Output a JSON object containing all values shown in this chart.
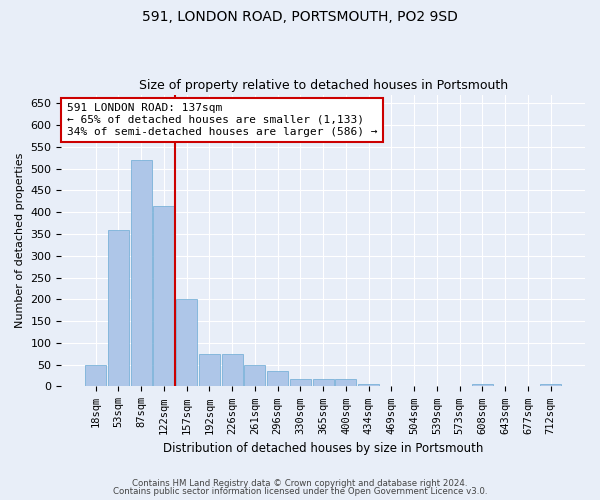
{
  "title": "591, LONDON ROAD, PORTSMOUTH, PO2 9SD",
  "subtitle": "Size of property relative to detached houses in Portsmouth",
  "xlabel": "Distribution of detached houses by size in Portsmouth",
  "ylabel": "Number of detached properties",
  "categories": [
    "18sqm",
    "53sqm",
    "87sqm",
    "122sqm",
    "157sqm",
    "192sqm",
    "226sqm",
    "261sqm",
    "296sqm",
    "330sqm",
    "365sqm",
    "400sqm",
    "434sqm",
    "469sqm",
    "504sqm",
    "539sqm",
    "573sqm",
    "608sqm",
    "643sqm",
    "677sqm",
    "712sqm"
  ],
  "values": [
    50,
    360,
    520,
    415,
    200,
    75,
    75,
    50,
    35,
    18,
    18,
    18,
    5,
    2,
    2,
    2,
    2,
    5,
    2,
    2,
    5
  ],
  "bar_color": "#aec6e8",
  "bar_edge_color": "#6aaad4",
  "background_color": "#e8eef8",
  "grid_color": "#ffffff",
  "vline_x": 3.5,
  "vline_color": "#cc0000",
  "annotation_text": "591 LONDON ROAD: 137sqm\n← 65% of detached houses are smaller (1,133)\n34% of semi-detached houses are larger (586) →",
  "annotation_box_color": "#ffffff",
  "annotation_box_edge": "#cc0000",
  "footer1": "Contains HM Land Registry data © Crown copyright and database right 2024.",
  "footer2": "Contains public sector information licensed under the Open Government Licence v3.0.",
  "ylim": [
    0,
    670
  ],
  "yticks": [
    0,
    50,
    100,
    150,
    200,
    250,
    300,
    350,
    400,
    450,
    500,
    550,
    600,
    650
  ]
}
